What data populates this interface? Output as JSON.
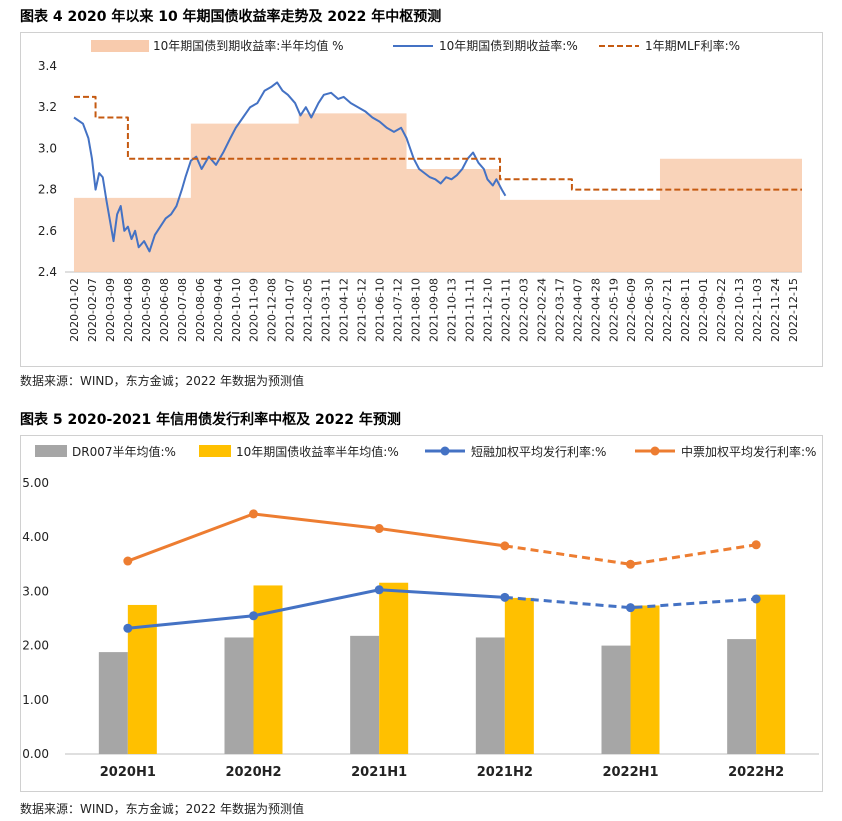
{
  "figure1": {
    "title": "图表 4   2020 年以来 10 年期国债收益率走势及 2022 年中枢预测",
    "source": "数据来源：WIND，东方金诚；2022 年数据为预测值"
  },
  "figure2": {
    "title": "图表 5   2020-2021 年信用债发行利率中枢及 2022 年预测",
    "source": "数据来源：WIND，东方金诚；2022 年数据为预测值"
  },
  "chart_data": [
    {
      "type": "line",
      "ylim": [
        2.4,
        3.4
      ],
      "yticks": [
        "2.4",
        "2.6",
        "2.8",
        "3.0",
        "3.2",
        "3.4"
      ],
      "xticks": [
        "2020-01-02",
        "2020-02-07",
        "2020-03-09",
        "2020-04-08",
        "2020-05-09",
        "2020-06-08",
        "2020-07-08",
        "2020-08-06",
        "2020-09-04",
        "2020-10-10",
        "2020-11-09",
        "2020-12-08",
        "2021-01-07",
        "2021-02-05",
        "2021-03-11",
        "2021-04-12",
        "2021-05-12",
        "2021-06-10",
        "2021-07-12",
        "2021-08-10",
        "2021-09-08",
        "2021-10-13",
        "2021-11-11",
        "2021-12-10",
        "2022-01-11",
        "2022-02-03",
        "2022-02-24",
        "2022-03-17",
        "2022-04-07",
        "2022-04-28",
        "2022-05-19",
        "2022-06-09",
        "2022-06-30",
        "2022-07-21",
        "2022-08-11",
        "2022-09-01",
        "2022-09-22",
        "2022-10-13",
        "2022-11-03",
        "2022-11-24",
        "2022-12-15"
      ],
      "series": [
        {
          "name": "10年期国债到期收益率:半年均值 %",
          "style": "area",
          "color": "#f8cbad",
          "points": [
            [
              0,
              2.76
            ],
            [
              6.5,
              2.76
            ],
            [
              6.5,
              3.12
            ],
            [
              12.5,
              3.12
            ],
            [
              12.5,
              3.17
            ],
            [
              18.5,
              3.17
            ],
            [
              18.5,
              2.9
            ],
            [
              23.7,
              2.9
            ],
            [
              23.7,
              2.75
            ],
            [
              32.6,
              2.75
            ],
            [
              32.6,
              2.95
            ],
            [
              40.5,
              2.95
            ]
          ]
        },
        {
          "name": "10年期国债到期收益率:%",
          "style": "line",
          "color": "#4472c4",
          "points": [
            [
              0,
              3.15
            ],
            [
              0.5,
              3.12
            ],
            [
              0.8,
              3.05
            ],
            [
              1.0,
              2.95
            ],
            [
              1.2,
              2.8
            ],
            [
              1.4,
              2.88
            ],
            [
              1.6,
              2.86
            ],
            [
              1.8,
              2.75
            ],
            [
              2.0,
              2.65
            ],
            [
              2.2,
              2.55
            ],
            [
              2.4,
              2.68
            ],
            [
              2.6,
              2.72
            ],
            [
              2.8,
              2.6
            ],
            [
              3.0,
              2.62
            ],
            [
              3.2,
              2.56
            ],
            [
              3.4,
              2.6
            ],
            [
              3.6,
              2.52
            ],
            [
              3.9,
              2.55
            ],
            [
              4.2,
              2.5
            ],
            [
              4.5,
              2.58
            ],
            [
              4.8,
              2.62
            ],
            [
              5.1,
              2.66
            ],
            [
              5.4,
              2.68
            ],
            [
              5.7,
              2.72
            ],
            [
              6.0,
              2.8
            ],
            [
              6.2,
              2.86
            ],
            [
              6.5,
              2.94
            ],
            [
              6.8,
              2.96
            ],
            [
              7.1,
              2.9
            ],
            [
              7.5,
              2.96
            ],
            [
              7.9,
              2.92
            ],
            [
              8.3,
              2.98
            ],
            [
              8.7,
              3.05
            ],
            [
              9.0,
              3.1
            ],
            [
              9.4,
              3.15
            ],
            [
              9.8,
              3.2
            ],
            [
              10.2,
              3.22
            ],
            [
              10.6,
              3.28
            ],
            [
              11.0,
              3.3
            ],
            [
              11.3,
              3.32
            ],
            [
              11.6,
              3.28
            ],
            [
              11.9,
              3.26
            ],
            [
              12.3,
              3.22
            ],
            [
              12.6,
              3.16
            ],
            [
              12.9,
              3.2
            ],
            [
              13.2,
              3.15
            ],
            [
              13.6,
              3.22
            ],
            [
              13.9,
              3.26
            ],
            [
              14.3,
              3.27
            ],
            [
              14.7,
              3.24
            ],
            [
              15.0,
              3.25
            ],
            [
              15.4,
              3.22
            ],
            [
              15.8,
              3.2
            ],
            [
              16.2,
              3.18
            ],
            [
              16.6,
              3.15
            ],
            [
              17.0,
              3.13
            ],
            [
              17.4,
              3.1
            ],
            [
              17.8,
              3.08
            ],
            [
              18.2,
              3.1
            ],
            [
              18.5,
              3.05
            ],
            [
              18.7,
              3.0
            ],
            [
              18.9,
              2.95
            ],
            [
              19.2,
              2.9
            ],
            [
              19.5,
              2.88
            ],
            [
              19.8,
              2.86
            ],
            [
              20.1,
              2.85
            ],
            [
              20.4,
              2.83
            ],
            [
              20.7,
              2.86
            ],
            [
              21.0,
              2.85
            ],
            [
              21.3,
              2.87
            ],
            [
              21.6,
              2.9
            ],
            [
              21.9,
              2.95
            ],
            [
              22.2,
              2.98
            ],
            [
              22.5,
              2.93
            ],
            [
              22.8,
              2.9
            ],
            [
              23.0,
              2.85
            ],
            [
              23.3,
              2.82
            ],
            [
              23.5,
              2.85
            ],
            [
              23.8,
              2.8
            ],
            [
              24.0,
              2.77
            ]
          ]
        },
        {
          "name": "1年期MLF利率:%",
          "style": "dashed",
          "color": "#c55a11",
          "points": [
            [
              0,
              3.25
            ],
            [
              1.2,
              3.25
            ],
            [
              1.2,
              3.15
            ],
            [
              3.0,
              3.15
            ],
            [
              3.0,
              2.95
            ],
            [
              23.7,
              2.95
            ],
            [
              23.7,
              2.85
            ],
            [
              27.7,
              2.85
            ],
            [
              27.7,
              2.8
            ],
            [
              40.5,
              2.8
            ]
          ]
        }
      ]
    },
    {
      "type": "bar",
      "ylim": [
        0,
        5
      ],
      "yticks": [
        "0.00",
        "1.00",
        "2.00",
        "3.00",
        "4.00",
        "5.00"
      ],
      "categories": [
        "2020H1",
        "2020H2",
        "2021H1",
        "2021H2",
        "2022H1",
        "2022H2"
      ],
      "series": [
        {
          "name": "DR007半年均值:%",
          "type": "bar",
          "color": "#a6a6a6",
          "values": [
            1.88,
            2.15,
            2.18,
            2.15,
            2.0,
            2.12
          ]
        },
        {
          "name": "10年期国债收益率半年均值:%",
          "type": "bar",
          "color": "#ffc000",
          "values": [
            2.75,
            3.11,
            3.16,
            2.88,
            2.74,
            2.94
          ]
        },
        {
          "name": "短融加权平均发行利率:%",
          "type": "line",
          "color": "#4472c4",
          "values": [
            2.32,
            2.55,
            3.03,
            2.89,
            2.7,
            2.86
          ],
          "dashed_from_index": 3
        },
        {
          "name": "中票加权平均发行利率:%",
          "type": "line",
          "color": "#ed7d31",
          "values": [
            3.56,
            4.43,
            4.16,
            3.84,
            3.5,
            3.86
          ],
          "dashed_from_index": 3
        }
      ]
    }
  ]
}
